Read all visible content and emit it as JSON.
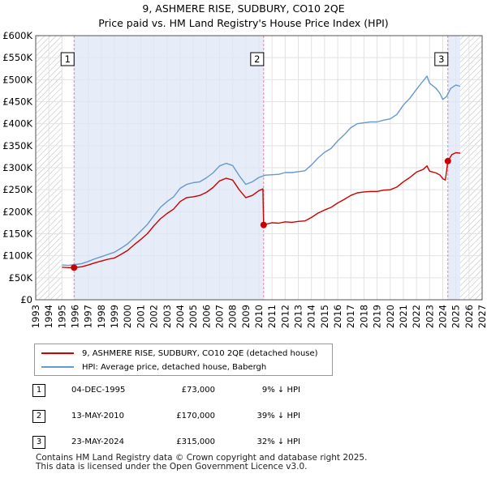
{
  "title": {
    "line1": "9, ASHMERE RISE, SUDBURY, CO10 2QE",
    "line2": "Price paid vs. HM Land Registry's House Price Index (HPI)"
  },
  "colors": {
    "property": "#cc0000",
    "hpi": "#6699cc",
    "marker_line": "#e6829e",
    "shade": "#dde6f5",
    "hatch": "#b8b8b8"
  },
  "chart_data": {
    "type": "line",
    "xlim": [
      1993,
      2027
    ],
    "ylim": [
      0,
      600000
    ],
    "y_ticks": [
      0,
      50000,
      100000,
      150000,
      200000,
      250000,
      300000,
      350000,
      400000,
      450000,
      500000,
      550000,
      600000
    ],
    "y_tick_labels": [
      "£0",
      "£50K",
      "£100K",
      "£150K",
      "£200K",
      "£250K",
      "£300K",
      "£350K",
      "£400K",
      "£450K",
      "£500K",
      "£550K",
      "£600K"
    ],
    "x_ticks": [
      1993,
      1994,
      1995,
      1996,
      1997,
      1998,
      1999,
      2000,
      2001,
      2002,
      2003,
      2004,
      2005,
      2006,
      2007,
      2008,
      2009,
      2010,
      2011,
      2012,
      2013,
      2014,
      2015,
      2016,
      2017,
      2018,
      2019,
      2020,
      2021,
      2022,
      2023,
      2024,
      2025,
      2026,
      2027
    ],
    "x_tick_labels": [
      "1993",
      "1994",
      "1995",
      "1996",
      "1997",
      "1998",
      "1999",
      "2000",
      "2001",
      "2002",
      "2003",
      "2004",
      "2005",
      "2006",
      "2007",
      "2008",
      "2009",
      "2010",
      "2011",
      "2012",
      "2013",
      "2014",
      "2015",
      "2016",
      "2017",
      "2018",
      "2019",
      "2020",
      "2021",
      "2022",
      "2023",
      "2024",
      "2025",
      "2026",
      "2027"
    ],
    "data_start_year": 1995.0,
    "data_end_year": 2025.33,
    "shaded_periods": [
      [
        1995.92,
        2010.36
      ],
      [
        2024.39,
        2025.33
      ]
    ],
    "series": [
      {
        "name": "9, ASHMERE RISE, SUDBURY, CO10 2QE (detached house)",
        "x": [
          1995.0,
          1995.5,
          1995.92,
          1996.5,
          1997.0,
          1997.5,
          1998.0,
          1998.5,
          1999.0,
          1999.5,
          2000.0,
          2000.5,
          2001.0,
          2001.5,
          2002.0,
          2002.5,
          2003.0,
          2003.5,
          2004.0,
          2004.5,
          2005.0,
          2005.5,
          2006.0,
          2006.5,
          2007.0,
          2007.5,
          2008.0,
          2008.5,
          2009.0,
          2009.5,
          2010.0,
          2010.3,
          2010.36,
          2010.7,
          2011.0,
          2011.5,
          2012.0,
          2012.5,
          2013.0,
          2013.5,
          2014.0,
          2014.5,
          2015.0,
          2015.5,
          2016.0,
          2016.5,
          2017.0,
          2017.5,
          2018.0,
          2018.5,
          2019.0,
          2019.5,
          2020.0,
          2020.5,
          2021.0,
          2021.5,
          2022.0,
          2022.5,
          2022.8,
          2023.0,
          2023.5,
          2023.8,
          2024.0,
          2024.2,
          2024.39,
          2024.7,
          2025.0,
          2025.33
        ],
        "y": [
          74000,
          73000,
          73000,
          75000,
          79000,
          84000,
          88000,
          92000,
          95000,
          103000,
          112000,
          125000,
          137000,
          150000,
          168000,
          184000,
          196000,
          206000,
          223000,
          232000,
          234000,
          237000,
          244000,
          255000,
          270000,
          276000,
          272000,
          250000,
          232000,
          237000,
          248000,
          252000,
          170000,
          173000,
          175000,
          174000,
          177000,
          176000,
          178000,
          179000,
          187000,
          197000,
          204000,
          210000,
          220000,
          228000,
          237000,
          243000,
          245000,
          246000,
          246000,
          249000,
          250000,
          256000,
          268000,
          278000,
          290000,
          296000,
          304000,
          292000,
          288000,
          283000,
          275000,
          272000,
          315000,
          330000,
          334000,
          333000
        ]
      },
      {
        "name": "HPI: Average price, detached house, Babergh",
        "x": [
          1995.0,
          1995.5,
          1996.0,
          1996.5,
          1997.0,
          1997.5,
          1998.0,
          1998.5,
          1999.0,
          1999.5,
          2000.0,
          2000.5,
          2001.0,
          2001.5,
          2002.0,
          2002.5,
          2003.0,
          2003.5,
          2004.0,
          2004.5,
          2005.0,
          2005.5,
          2006.0,
          2006.5,
          2007.0,
          2007.5,
          2008.0,
          2008.5,
          2009.0,
          2009.5,
          2010.0,
          2010.5,
          2011.0,
          2011.5,
          2012.0,
          2012.5,
          2013.0,
          2013.5,
          2014.0,
          2014.5,
          2015.0,
          2015.5,
          2016.0,
          2016.5,
          2017.0,
          2017.5,
          2018.0,
          2018.5,
          2019.0,
          2019.5,
          2020.0,
          2020.5,
          2021.0,
          2021.5,
          2022.0,
          2022.5,
          2022.8,
          2023.0,
          2023.5,
          2023.8,
          2024.0,
          2024.3,
          2024.6,
          2025.0,
          2025.33
        ],
        "y": [
          79000,
          78000,
          80000,
          82000,
          87000,
          93000,
          98000,
          103000,
          108000,
          117000,
          127000,
          141000,
          156000,
          171000,
          191000,
          210000,
          223000,
          234000,
          253000,
          262000,
          266000,
          268000,
          277000,
          288000,
          304000,
          310000,
          305000,
          282000,
          262000,
          268000,
          278000,
          283000,
          284000,
          285000,
          289000,
          289000,
          291000,
          293000,
          306000,
          322000,
          335000,
          344000,
          361000,
          375000,
          391000,
          400000,
          402000,
          404000,
          404000,
          408000,
          411000,
          421000,
          442000,
          458000,
          478000,
          497000,
          508000,
          492000,
          480000,
          468000,
          455000,
          462000,
          480000,
          488000,
          485000
        ]
      }
    ],
    "sales": [
      {
        "label": "1",
        "x": 1995.92,
        "y": 73000
      },
      {
        "label": "2",
        "x": 2010.36,
        "y": 170000
      },
      {
        "label": "3",
        "x": 2024.39,
        "y": 315000
      }
    ]
  },
  "legend": {
    "property_label": "9, ASHMERE RISE, SUDBURY, CO10 2QE (detached house)",
    "hpi_label": "HPI: Average price, detached house, Babergh"
  },
  "sales_table": [
    {
      "num": "1",
      "date": "04-DEC-1995",
      "price": "£73,000",
      "hpi": "9% ↓ HPI"
    },
    {
      "num": "2",
      "date": "13-MAY-2010",
      "price": "£170,000",
      "hpi": "39% ↓ HPI"
    },
    {
      "num": "3",
      "date": "23-MAY-2024",
      "price": "£315,000",
      "hpi": "32% ↓ HPI"
    }
  ],
  "footer": {
    "line1": "Contains HM Land Registry data © Crown copyright and database right 2025.",
    "line2": "This data is licensed under the Open Government Licence v3.0."
  }
}
